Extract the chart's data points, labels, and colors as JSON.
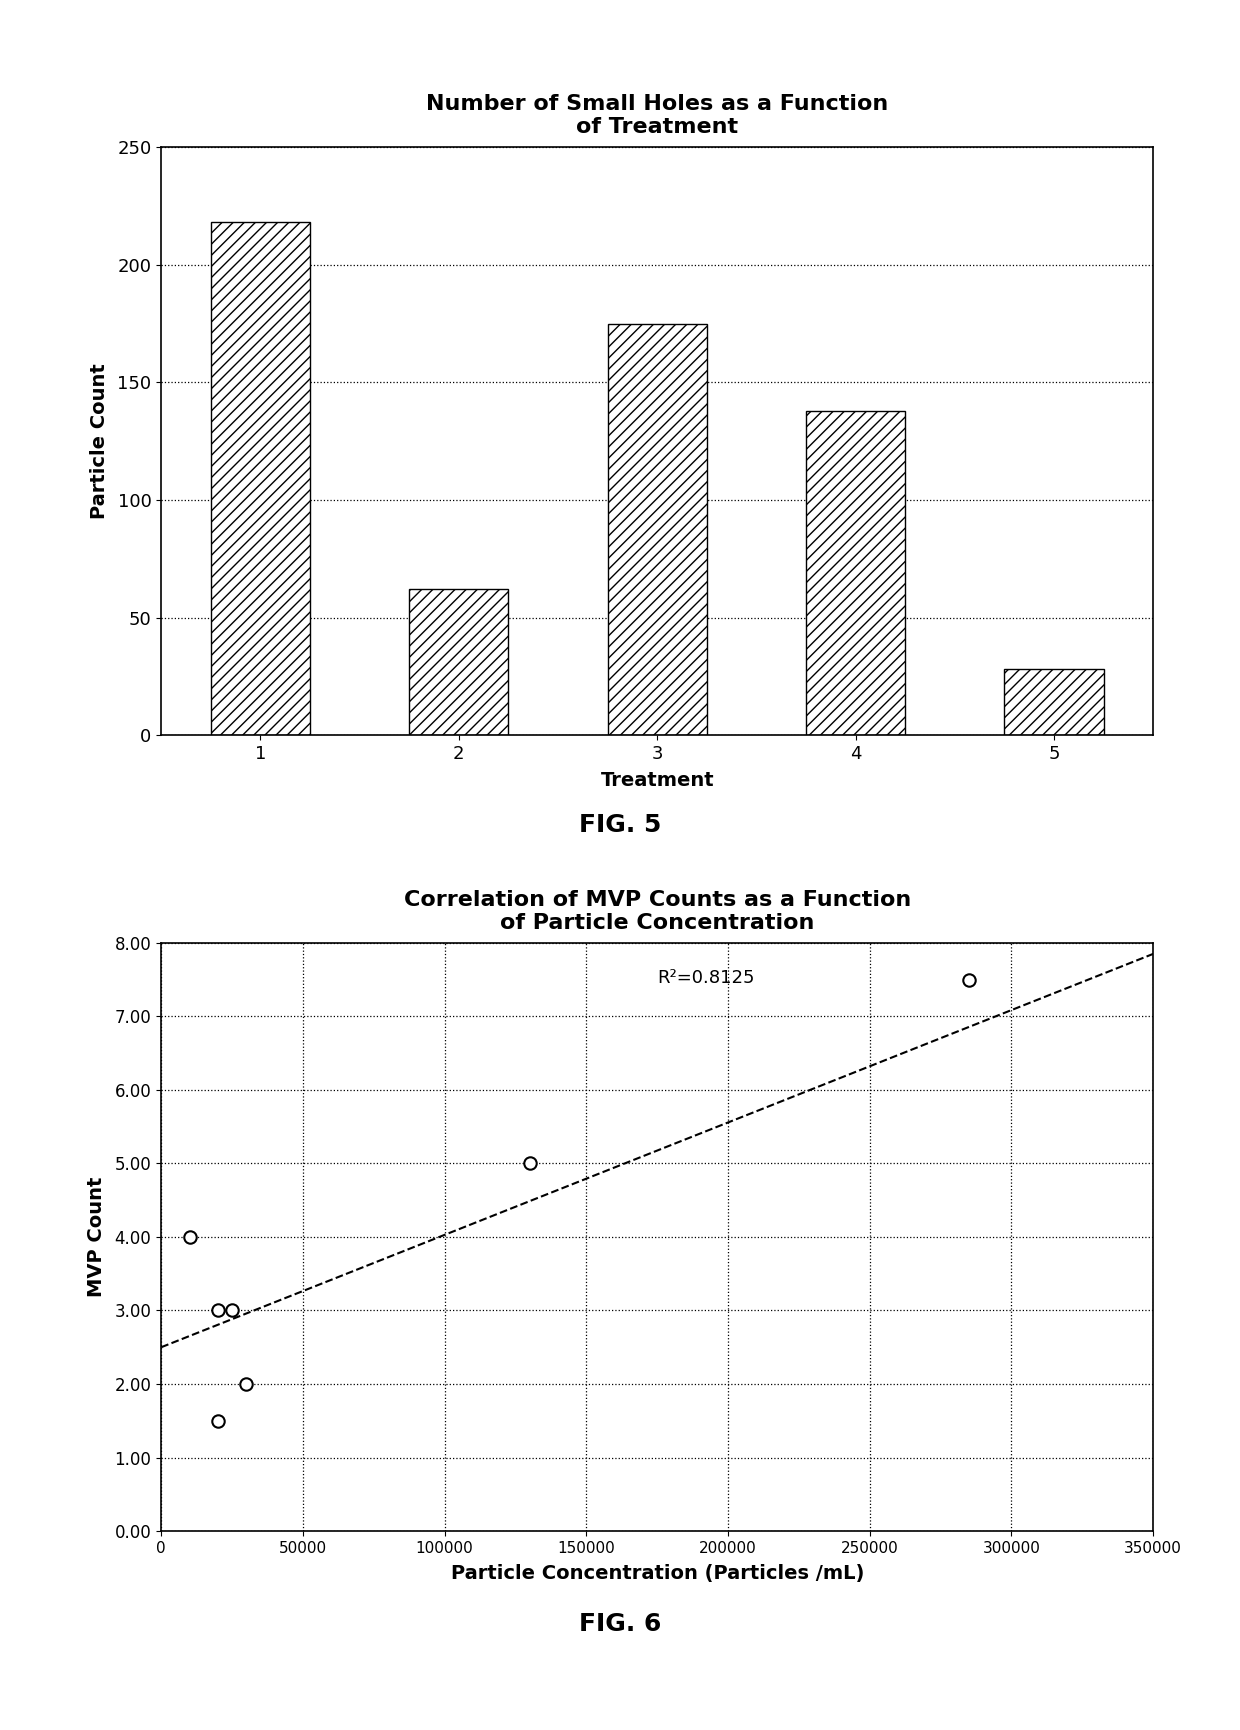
{
  "fig5": {
    "title": "Number of Small Holes as a Function\nof Treatment",
    "xlabel": "Treatment",
    "ylabel": "Particle Count",
    "categories": [
      1,
      2,
      3,
      4,
      5
    ],
    "values": [
      218,
      62,
      175,
      138,
      28
    ],
    "ylim": [
      0,
      250
    ],
    "yticks": [
      0,
      50,
      100,
      150,
      200,
      250
    ],
    "bar_color": "white",
    "hatch": "///",
    "edgecolor": "black",
    "figcaption": "FIG. 5"
  },
  "fig6": {
    "title": "Correlation of MVP Counts as a Function\nof Particle Concentration",
    "xlabel": "Particle Concentration (Particles /mL)",
    "ylabel": "MVP Count",
    "scatter_x": [
      10000,
      20000,
      25000,
      30000,
      20000,
      130000,
      285000
    ],
    "scatter_y": [
      4.0,
      3.0,
      3.0,
      2.0,
      1.5,
      5.0,
      7.5
    ],
    "xlim": [
      0,
      350000
    ],
    "ylim": [
      0.0,
      8.0
    ],
    "xticks": [
      0,
      50000,
      100000,
      150000,
      200000,
      250000,
      300000,
      350000
    ],
    "xtick_labels": [
      "0",
      "50000",
      "100000",
      "150000",
      "200000",
      "250000",
      "300000",
      "350000"
    ],
    "yticks": [
      0.0,
      1.0,
      2.0,
      3.0,
      4.0,
      5.0,
      6.0,
      7.0,
      8.0
    ],
    "ytick_labels": [
      "0.00",
      "1.00",
      "2.00",
      "3.00",
      "4.00",
      "5.00",
      "6.00",
      "7.00",
      "8.00"
    ],
    "trendline_x0": 0,
    "trendline_x1": 350000,
    "trendline_y0": 2.5,
    "trendline_y1": 7.85,
    "r_squared": "R²=0.8125",
    "r2_x": 175000,
    "r2_y": 7.65,
    "figcaption": "FIG. 6"
  },
  "background_color": "white",
  "text_color": "black"
}
